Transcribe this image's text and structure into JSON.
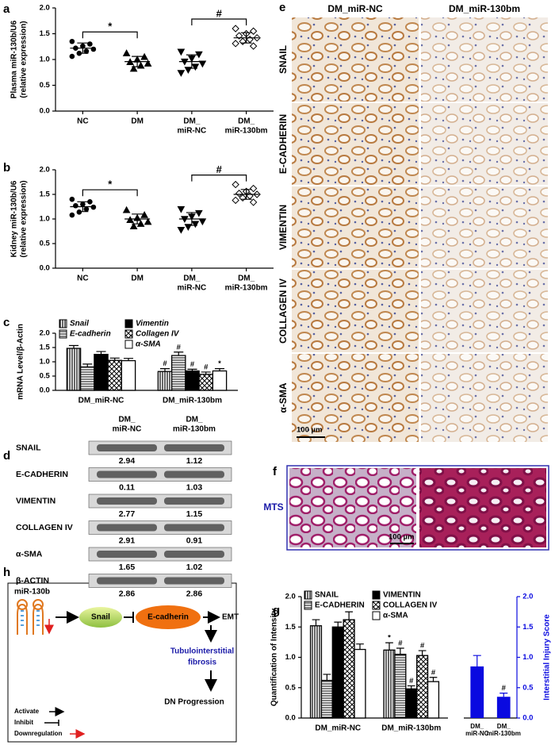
{
  "chart_data": [
    {
      "type": "scatter",
      "label": "a",
      "ylabel": [
        "Plasma miR-130b/U6",
        "(relative expression)"
      ],
      "categories": [
        [
          "NC"
        ],
        [
          "DM"
        ],
        [
          "DM_",
          "miR-NC"
        ],
        [
          "DM_",
          "miR-130bm"
        ]
      ],
      "markers": [
        "circle",
        "triangle",
        "triangle-down",
        "diamond-open"
      ],
      "values": [
        [
          1.35,
          1.3,
          1.26,
          1.22,
          1.2,
          1.16,
          1.12,
          1.06
        ],
        [
          1.12,
          1.05,
          1.0,
          0.95,
          0.92,
          0.88,
          0.82
        ],
        [
          1.15,
          1.1,
          1.02,
          0.96,
          0.92,
          0.86,
          0.8,
          0.74
        ],
        [
          1.6,
          1.55,
          1.5,
          1.46,
          1.42,
          1.39,
          1.35,
          1.31,
          1.26
        ]
      ],
      "means": [
        1.22,
        0.96,
        0.96,
        1.42
      ],
      "sds": [
        0.1,
        0.1,
        0.13,
        0.1
      ],
      "annotations": [
        "*",
        "#"
      ],
      "ylim": [
        0,
        2
      ],
      "yticks": [
        {
          "value": 0,
          "label": "0.0"
        },
        {
          "value": 0.5,
          "label": "0.5"
        },
        {
          "value": 1,
          "label": "1.0"
        },
        {
          "value": 1.5,
          "label": "1.5"
        },
        {
          "value": 2,
          "label": "2.0"
        }
      ]
    },
    {
      "type": "scatter",
      "label": "b",
      "ylabel": [
        "Kidney miR-130b/U6",
        "(relative expression)"
      ],
      "categories": [
        [
          "NC"
        ],
        [
          "DM"
        ],
        [
          "DM_",
          "miR-NC"
        ],
        [
          "DM_",
          "miR-130bm"
        ]
      ],
      "markers": [
        "circle",
        "triangle",
        "triangle-down",
        "diamond-open"
      ],
      "values": [
        [
          1.4,
          1.35,
          1.3,
          1.27,
          1.24,
          1.2,
          1.14,
          1.08
        ],
        [
          1.18,
          1.08,
          1.02,
          0.98,
          0.94,
          0.9,
          0.85
        ],
        [
          1.2,
          1.12,
          1.05,
          1.0,
          0.95,
          0.9,
          0.84,
          0.78
        ],
        [
          1.7,
          1.62,
          1.56,
          1.52,
          1.5,
          1.47,
          1.43,
          1.38,
          1.34
        ]
      ],
      "means": [
        1.25,
        1.0,
        1.0,
        1.5
      ],
      "sds": [
        0.1,
        0.1,
        0.13,
        0.1
      ],
      "annotations": [
        "*",
        "#"
      ],
      "ylim": [
        0,
        2
      ],
      "yticks": [
        {
          "value": 0,
          "label": "0.0"
        },
        {
          "value": 0.5,
          "label": "0.5"
        },
        {
          "value": 1,
          "label": "1.0"
        },
        {
          "value": 1.5,
          "label": "1.5"
        },
        {
          "value": 2,
          "label": "2.0"
        }
      ]
    },
    {
      "type": "bar",
      "label": "c",
      "legend_italic": true,
      "ylabel": [
        "mRNA Level/β-Actin"
      ],
      "categories": [
        [
          "DM_miR-NC"
        ],
        [
          "DM_miR-130bm"
        ]
      ],
      "series": [
        {
          "name": "Snail",
          "pattern": "vstripe",
          "values": [
            1.47,
            0.66
          ],
          "errors": [
            0.1,
            0.1
          ],
          "sig": [
            null,
            "#"
          ]
        },
        {
          "name": "E-cadherin",
          "pattern": "hgrid",
          "values": [
            0.82,
            1.22
          ],
          "errors": [
            0.1,
            0.12
          ],
          "sig": [
            null,
            "#"
          ]
        },
        {
          "name": "Vimentin",
          "pattern": "solid",
          "values": [
            1.26,
            0.68
          ],
          "errors": [
            0.1,
            0.06
          ],
          "sig": [
            null,
            "#"
          ]
        },
        {
          "name": "Collagen IV",
          "pattern": "cross",
          "values": [
            1.05,
            0.56
          ],
          "errors": [
            0.08,
            0.08
          ],
          "sig": [
            null,
            "#"
          ]
        },
        {
          "name": "α-SMA",
          "pattern": "open",
          "values": [
            1.04,
            0.68
          ],
          "errors": [
            0.08,
            0.08
          ],
          "sig": [
            null,
            "*"
          ]
        }
      ],
      "ylim": [
        0,
        2
      ],
      "yticks": [
        {
          "value": 0,
          "label": "0.0"
        },
        {
          "value": 0.5,
          "label": "0.5"
        },
        {
          "value": 1,
          "label": "1.0"
        },
        {
          "value": 1.5,
          "label": "1.5"
        },
        {
          "value": 2,
          "label": "2.0"
        }
      ]
    },
    {
      "type": "bar",
      "label": "g",
      "legend_italic": false,
      "ylabel": [
        "Quantification of Intensity"
      ],
      "categories": [
        [
          "DM_miR-NC"
        ],
        [
          "DM_miR-130bm"
        ]
      ],
      "series": [
        {
          "name": "SNAIL",
          "pattern": "vstripe",
          "values": [
            1.52,
            1.12
          ],
          "errors": [
            0.1,
            0.12
          ],
          "sig": [
            null,
            "*"
          ]
        },
        {
          "name": "E-CADHERIN",
          "pattern": "hgrid",
          "values": [
            0.62,
            1.05
          ],
          "errors": [
            0.1,
            0.1
          ],
          "sig": [
            null,
            "#"
          ]
        },
        {
          "name": "VIMENTIN",
          "pattern": "solid",
          "values": [
            1.5,
            0.48
          ],
          "errors": [
            0.08,
            0.05
          ],
          "sig": [
            null,
            "#"
          ]
        },
        {
          "name": "COLLAGEN IV",
          "pattern": "cross",
          "values": [
            1.62,
            1.03
          ],
          "errors": [
            0.13,
            0.08
          ],
          "sig": [
            null,
            "#"
          ]
        },
        {
          "name": "α-SMA",
          "pattern": "open",
          "values": [
            1.13,
            0.6
          ],
          "errors": [
            0.09,
            0.07
          ],
          "sig": [
            null,
            "#"
          ]
        }
      ],
      "ylim": [
        0,
        2
      ],
      "yticks": [
        {
          "value": 0,
          "label": "0.0"
        },
        {
          "value": 0.5,
          "label": "0.5"
        },
        {
          "value": 1,
          "label": "1.0"
        },
        {
          "value": 1.5,
          "label": "1.5"
        },
        {
          "value": 2,
          "label": "2.0"
        }
      ],
      "injury": {
        "y2label": "Interstitial Injury Score",
        "color": "#0a0ae0",
        "categories": [
          [
            "DM_",
            "miR-NC"
          ],
          [
            "DM_",
            "miR-130bm"
          ]
        ],
        "values": [
          0.85,
          0.35
        ],
        "errors": [
          0.18,
          0.06
        ],
        "sig": [
          null,
          "#"
        ],
        "y2lim": [
          0,
          2
        ],
        "y2ticks": [
          {
            "value": 0,
            "label": "0.0"
          },
          {
            "value": 0.5,
            "label": "0.5"
          },
          {
            "value": 1,
            "label": "1.0"
          },
          {
            "value": 1.5,
            "label": "1.5"
          },
          {
            "value": 2,
            "label": "2.0"
          }
        ]
      }
    }
  ],
  "blot": {
    "label": "d",
    "headers": [
      [
        "DM_",
        "miR-NC"
      ],
      [
        "DM_",
        "miR-130bm"
      ]
    ],
    "rows": [
      {
        "name": "SNAIL",
        "values": [
          2.94,
          1.12
        ]
      },
      {
        "name": "E-CADHERIN",
        "values": [
          0.11,
          1.03
        ]
      },
      {
        "name": "VIMENTIN",
        "values": [
          2.77,
          1.15
        ]
      },
      {
        "name": "COLLAGEN IV",
        "values": [
          2.91,
          0.91
        ]
      },
      {
        "name": "α-SMA",
        "values": [
          1.65,
          1.02
        ]
      },
      {
        "name": "β-ACTIN",
        "values": [
          2.86,
          2.86
        ]
      }
    ]
  },
  "ihc": {
    "label": "e",
    "columns": [
      "DM_miR-NC",
      "DM_miR-130bm"
    ],
    "rows": [
      "SNAIL",
      "E-CADHERIN",
      "VIMENTIN",
      "COLLAGEN IV",
      "α-SMA"
    ],
    "scale_bar": "100 µm"
  },
  "mts": {
    "label": "f",
    "name": "MTS",
    "scale_bar": "100 µm"
  },
  "diagram": {
    "label": "h",
    "mirna": "miR-130b",
    "snail": "Snail",
    "ecadherin": "E-cadherin",
    "emt": "EMT",
    "fibrosis": [
      "Tubulointerstitial",
      "fibrosis"
    ],
    "outcome": "DN Progression",
    "legend": [
      "Activate",
      "Inhibit",
      "Downregulation"
    ]
  }
}
